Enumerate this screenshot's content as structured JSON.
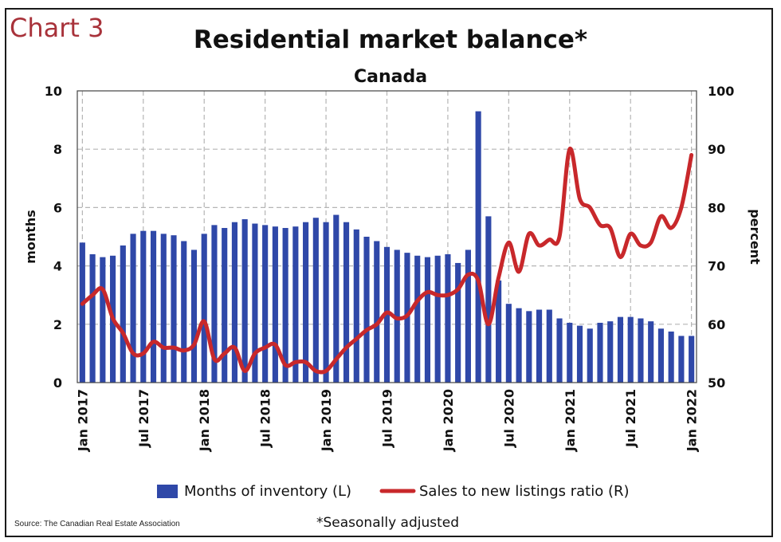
{
  "header": {
    "chart_number": "Chart 3",
    "footnote": "*Seasonally adjusted",
    "source": "Source: The Canadian Real Estate Association"
  },
  "colors": {
    "bar": "#2f48a8",
    "line": "#c8282b",
    "grid": "#b5b5b5"
  },
  "chart_data": {
    "type": "bar",
    "title": "Residential market balance*",
    "subtitle": "Canada",
    "ylabel": "months",
    "y2label": "percent",
    "ylim": [
      0,
      10
    ],
    "y2lim": [
      50,
      100
    ],
    "yticks": [
      "0",
      "2",
      "4",
      "6",
      "8",
      "10"
    ],
    "y2ticks": [
      "50",
      "60",
      "70",
      "80",
      "90",
      "100"
    ],
    "xtick_labels": [
      {
        "label": "Jan 2017",
        "index": 0
      },
      {
        "label": "Jul 2017",
        "index": 6
      },
      {
        "label": "Jan 2018",
        "index": 12
      },
      {
        "label": "Jul 2018",
        "index": 18
      },
      {
        "label": "Jan 2019",
        "index": 24
      },
      {
        "label": "Jul 2019",
        "index": 30
      },
      {
        "label": "Jan 2020",
        "index": 36
      },
      {
        "label": "Jul 2020",
        "index": 42
      },
      {
        "label": "Jan 2021",
        "index": 48
      },
      {
        "label": "Jul 2021",
        "index": 54
      },
      {
        "label": "Jan 2022",
        "index": 60
      }
    ],
    "grid": true,
    "legend_position": "bottom",
    "series": [
      {
        "name": "Months of inventory (L)",
        "type": "bar",
        "axis": "left",
        "values": [
          4.8,
          4.4,
          4.3,
          4.35,
          4.7,
          5.1,
          5.2,
          5.2,
          5.1,
          5.05,
          4.85,
          4.55,
          5.1,
          5.4,
          5.3,
          5.5,
          5.6,
          5.45,
          5.4,
          5.35,
          5.3,
          5.35,
          5.5,
          5.65,
          5.5,
          5.75,
          5.5,
          5.25,
          5.0,
          4.85,
          4.65,
          4.55,
          4.45,
          4.35,
          4.3,
          4.35,
          4.4,
          4.1,
          4.55,
          9.3,
          5.7,
          3.5,
          2.7,
          2.55,
          2.45,
          2.5,
          2.5,
          2.2,
          2.05,
          1.95,
          1.85,
          2.05,
          2.1,
          2.25,
          2.25,
          2.2,
          2.1,
          1.85,
          1.75,
          1.6,
          1.6
        ]
      },
      {
        "name": "Sales to new listings ratio (R)",
        "type": "line",
        "axis": "right",
        "values": [
          63.5,
          65,
          66,
          61,
          58.5,
          55,
          55,
          57,
          56,
          56,
          55.5,
          56.5,
          60.5,
          54,
          55,
          56,
          52,
          55,
          56,
          56.5,
          53,
          53.5,
          53.5,
          52,
          52,
          54,
          56,
          57.5,
          59,
          60,
          62,
          61,
          61.5,
          64,
          65.5,
          65,
          65,
          66,
          68.5,
          67.5,
          60,
          68,
          74,
          69,
          75.5,
          73.5,
          74.5,
          75,
          90,
          81.5,
          80,
          77,
          76.5,
          71.5,
          75.5,
          73.5,
          74,
          78.5,
          76.5,
          80,
          89
        ]
      }
    ]
  }
}
